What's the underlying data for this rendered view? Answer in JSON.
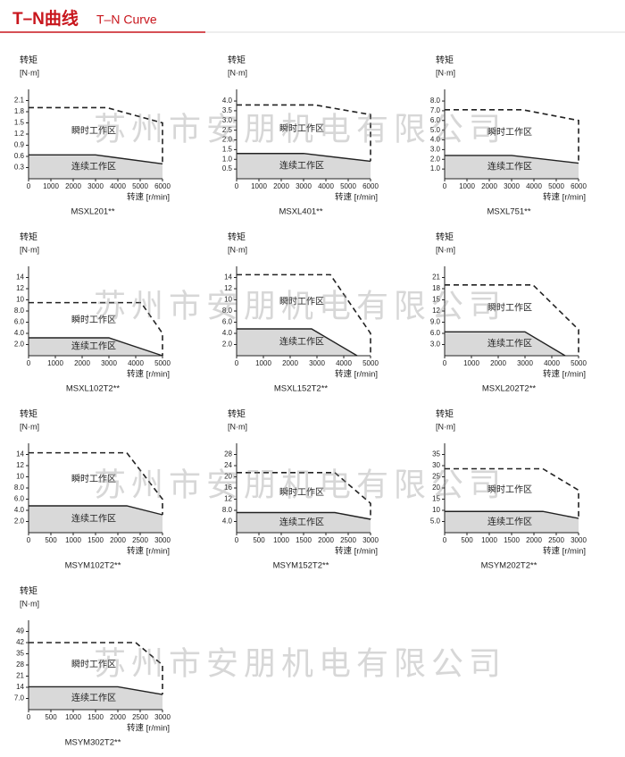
{
  "header": {
    "title": "T–N曲线",
    "subtitle": "T–N Curve"
  },
  "watermark": "苏州市安朋机电有限公司",
  "chart_data": [
    {
      "type": "area",
      "title": "MSXL201**",
      "ylabel": "转矩",
      "yunit": "[N·m]",
      "xlabel": "转速 [r/min]",
      "annotations": [
        "瞬时工作区",
        "连续工作区"
      ],
      "xlim": [
        0,
        6000
      ],
      "xticks": [
        0,
        1000,
        2000,
        3000,
        4000,
        5000,
        6000
      ],
      "ylim": [
        0,
        2.4
      ],
      "yticks": [
        0.3,
        0.6,
        0.9,
        1.2,
        1.5,
        1.8,
        2.1
      ],
      "series": [
        {
          "x": [
            0,
            3500,
            6000,
            6000
          ],
          "values": [
            1.91,
            1.91,
            1.5,
            0.4
          ],
          "style": "dashed",
          "color": "#222222"
        },
        {
          "x": [
            0,
            3000,
            6000
          ],
          "values": [
            0.64,
            0.64,
            0.4
          ],
          "style": "solid",
          "color": "#222222",
          "fill": "#d9d9d9"
        }
      ]
    },
    {
      "type": "area",
      "title": "MSXL401**",
      "ylabel": "转矩",
      "yunit": "[N·m]",
      "xlabel": "转速 [r/min]",
      "annotations": [
        "瞬时工作区",
        "连续工作区"
      ],
      "xlim": [
        0,
        6000
      ],
      "xticks": [
        0,
        1000,
        2000,
        3000,
        4000,
        5000,
        6000
      ],
      "ylim": [
        0,
        4.6
      ],
      "yticks": [
        0.5,
        {
          "value": 1,
          "label": "1.0"
        },
        1.5,
        {
          "value": 2,
          "label": "2.0"
        },
        2.5,
        {
          "value": 3,
          "label": "3.0"
        },
        3.5,
        {
          "value": 4,
          "label": "4.0"
        }
      ],
      "series": [
        {
          "x": [
            0,
            3500,
            6000,
            6000
          ],
          "values": [
            3.8,
            3.8,
            3.3,
            0.9
          ],
          "style": "dashed",
          "color": "#222222"
        },
        {
          "x": [
            0,
            3000,
            6000
          ],
          "values": [
            1.3,
            1.3,
            0.9
          ],
          "style": "solid",
          "color": "#222222",
          "fill": "#d9d9d9"
        }
      ]
    },
    {
      "type": "area",
      "title": "MSXL751**",
      "ylabel": "转矩",
      "yunit": "[N·m]",
      "xlabel": "转速 [r/min]",
      "annotations": [
        "瞬时工作区",
        "连续工作区"
      ],
      "xlim": [
        0,
        6000
      ],
      "xticks": [
        0,
        1000,
        2000,
        3000,
        4000,
        5000,
        6000
      ],
      "ylim": [
        0,
        9.2
      ],
      "yticks": [
        {
          "value": 1,
          "label": "1.0"
        },
        {
          "value": 2,
          "label": "2.0"
        },
        {
          "value": 3,
          "label": "3.0"
        },
        {
          "value": 4,
          "label": "4.0"
        },
        {
          "value": 5,
          "label": "5.0"
        },
        {
          "value": 6,
          "label": "6.0"
        },
        {
          "value": 7,
          "label": "7.0"
        },
        {
          "value": 8,
          "label": "8.0"
        }
      ],
      "series": [
        {
          "x": [
            0,
            3500,
            6000,
            6000
          ],
          "values": [
            7.1,
            7.1,
            6.0,
            1.6
          ],
          "style": "dashed",
          "color": "#222222"
        },
        {
          "x": [
            0,
            3000,
            6000
          ],
          "values": [
            2.4,
            2.4,
            1.6
          ],
          "style": "solid",
          "color": "#222222",
          "fill": "#d9d9d9"
        }
      ]
    },
    {
      "type": "area",
      "title": "MSXL102T2**",
      "ylabel": "转矩",
      "yunit": "[N·m]",
      "xlabel": "转速 [r/min]",
      "annotations": [
        "瞬时工作区",
        "连续工作区"
      ],
      "xlim": [
        0,
        5000
      ],
      "xticks": [
        0,
        1000,
        2000,
        3000,
        4000,
        5000
      ],
      "ylim": [
        0,
        16
      ],
      "yticks": [
        {
          "value": 2,
          "label": "2.0"
        },
        {
          "value": 4,
          "label": "4.0"
        },
        {
          "value": 6,
          "label": "6.0"
        },
        {
          "value": 8,
          "label": "8.0"
        },
        10,
        12,
        14
      ],
      "series": [
        {
          "x": [
            0,
            4200,
            5000,
            5000
          ],
          "values": [
            9.5,
            9.5,
            4.0,
            0
          ],
          "style": "dashed",
          "color": "#222222"
        },
        {
          "x": [
            0,
            3000,
            5000
          ],
          "values": [
            3.2,
            3.2,
            0
          ],
          "style": "solid",
          "color": "#222222",
          "fill": "#d9d9d9"
        }
      ]
    },
    {
      "type": "area",
      "title": "MSXL152T2**",
      "ylabel": "转矩",
      "yunit": "[N·m]",
      "xlabel": "转速 [r/min]",
      "annotations": [
        "瞬时工作区",
        "连续工作区"
      ],
      "xlim": [
        0,
        5000
      ],
      "xticks": [
        0,
        1000,
        2000,
        3000,
        4000,
        5000
      ],
      "ylim": [
        0,
        16
      ],
      "yticks": [
        {
          "value": 2,
          "label": "2.0"
        },
        {
          "value": 4,
          "label": "4.0"
        },
        {
          "value": 6,
          "label": "6.0"
        },
        {
          "value": 8,
          "label": "8.0"
        },
        10,
        12,
        14
      ],
      "series": [
        {
          "x": [
            0,
            3500,
            5000,
            5000
          ],
          "values": [
            14.5,
            14.5,
            4.0,
            0
          ],
          "style": "dashed",
          "color": "#222222"
        },
        {
          "x": [
            0,
            2800,
            4500
          ],
          "values": [
            4.8,
            4.8,
            0
          ],
          "style": "solid",
          "color": "#222222",
          "fill": "#d9d9d9"
        }
      ]
    },
    {
      "type": "area",
      "title": "MSXL202T2**",
      "ylabel": "转矩",
      "yunit": "[N·m]",
      "xlabel": "转速 [r/min]",
      "annotations": [
        "瞬时工作区",
        "连续工作区"
      ],
      "xlim": [
        0,
        5000
      ],
      "xticks": [
        0,
        1000,
        2000,
        3000,
        4000,
        5000
      ],
      "ylim": [
        0,
        24
      ],
      "yticks": [
        {
          "value": 3,
          "label": "3.0"
        },
        {
          "value": 6,
          "label": "6.0"
        },
        {
          "value": 9,
          "label": "9.0"
        },
        12,
        15,
        18,
        21
      ],
      "series": [
        {
          "x": [
            0,
            3300,
            5000,
            5000
          ],
          "values": [
            19,
            19,
            7,
            0
          ],
          "style": "dashed",
          "color": "#222222"
        },
        {
          "x": [
            0,
            3000,
            4500
          ],
          "values": [
            6.4,
            6.4,
            0
          ],
          "style": "solid",
          "color": "#222222",
          "fill": "#d9d9d9"
        }
      ]
    },
    {
      "type": "area",
      "title": "MSYM102T2**",
      "ylabel": "转矩",
      "yunit": "[N·m]",
      "xlabel": "转速 [r/min]",
      "annotations": [
        "瞬时工作区",
        "连续工作区"
      ],
      "xlim": [
        0,
        3000
      ],
      "xticks": [
        0,
        500,
        1000,
        1500,
        2000,
        2500,
        3000
      ],
      "ylim": [
        0,
        16
      ],
      "yticks": [
        {
          "value": 2,
          "label": "2.0"
        },
        {
          "value": 4,
          "label": "4.0"
        },
        {
          "value": 6,
          "label": "6.0"
        },
        {
          "value": 8,
          "label": "8.0"
        },
        10,
        12,
        14
      ],
      "series": [
        {
          "x": [
            0,
            2200,
            3000,
            3000
          ],
          "values": [
            14.3,
            14.3,
            6,
            3.2
          ],
          "style": "dashed",
          "color": "#222222"
        },
        {
          "x": [
            0,
            2200,
            3000
          ],
          "values": [
            4.8,
            4.8,
            3.2
          ],
          "style": "solid",
          "color": "#222222",
          "fill": "#d9d9d9"
        }
      ]
    },
    {
      "type": "area",
      "title": "MSYM152T2**",
      "ylabel": "转矩",
      "yunit": "[N·m]",
      "xlabel": "转速 [r/min]",
      "annotations": [
        "瞬时工作区",
        "连续工作区"
      ],
      "xlim": [
        0,
        3000
      ],
      "xticks": [
        0,
        500,
        1000,
        1500,
        2000,
        2500,
        3000
      ],
      "ylim": [
        0,
        32
      ],
      "yticks": [
        {
          "value": 4,
          "label": "4.0"
        },
        {
          "value": 8,
          "label": "8.0"
        },
        12,
        16,
        20,
        24,
        28
      ],
      "series": [
        {
          "x": [
            0,
            2200,
            3000,
            3000
          ],
          "values": [
            21.5,
            21.5,
            10.5,
            4.8
          ],
          "style": "dashed",
          "color": "#222222"
        },
        {
          "x": [
            0,
            2200,
            3000
          ],
          "values": [
            7.2,
            7.2,
            4.8
          ],
          "style": "solid",
          "color": "#222222",
          "fill": "#d9d9d9"
        }
      ]
    },
    {
      "type": "area",
      "title": "MSYM202T2**",
      "ylabel": "转矩",
      "yunit": "[N·m]",
      "xlabel": "转速 [r/min]",
      "annotations": [
        "瞬时工作区",
        "连续工作区"
      ],
      "xlim": [
        0,
        3000
      ],
      "xticks": [
        0,
        500,
        1000,
        1500,
        2000,
        2500,
        3000
      ],
      "ylim": [
        0,
        40
      ],
      "yticks": [
        {
          "value": 5,
          "label": "5.0"
        },
        10,
        15,
        20,
        25,
        30,
        35
      ],
      "series": [
        {
          "x": [
            0,
            2200,
            3000,
            3000
          ],
          "values": [
            28.6,
            28.6,
            19,
            6.4
          ],
          "style": "dashed",
          "color": "#222222"
        },
        {
          "x": [
            0,
            2200,
            3000
          ],
          "values": [
            9.5,
            9.5,
            6.4
          ],
          "style": "solid",
          "color": "#222222",
          "fill": "#d9d9d9"
        }
      ]
    },
    {
      "type": "area",
      "title": "MSYM302T2**",
      "ylabel": "转矩",
      "yunit": "[N·m]",
      "xlabel": "转速 [r/min]",
      "annotations": [
        "瞬时工作区",
        "连续工作区"
      ],
      "xlim": [
        0,
        3000
      ],
      "xticks": [
        0,
        500,
        1000,
        1500,
        2000,
        2500,
        3000
      ],
      "ylim": [
        0,
        56
      ],
      "yticks": [
        {
          "value": 7,
          "label": "7.0"
        },
        14,
        21,
        28,
        35,
        42,
        49
      ],
      "series": [
        {
          "x": [
            0,
            2400,
            3000,
            3000
          ],
          "values": [
            42,
            42,
            28,
            9.5
          ],
          "style": "dashed",
          "color": "#222222"
        },
        {
          "x": [
            0,
            2000,
            3000
          ],
          "values": [
            14.3,
            14.3,
            9.5
          ],
          "style": "solid",
          "color": "#222222",
          "fill": "#d9d9d9"
        }
      ]
    }
  ]
}
